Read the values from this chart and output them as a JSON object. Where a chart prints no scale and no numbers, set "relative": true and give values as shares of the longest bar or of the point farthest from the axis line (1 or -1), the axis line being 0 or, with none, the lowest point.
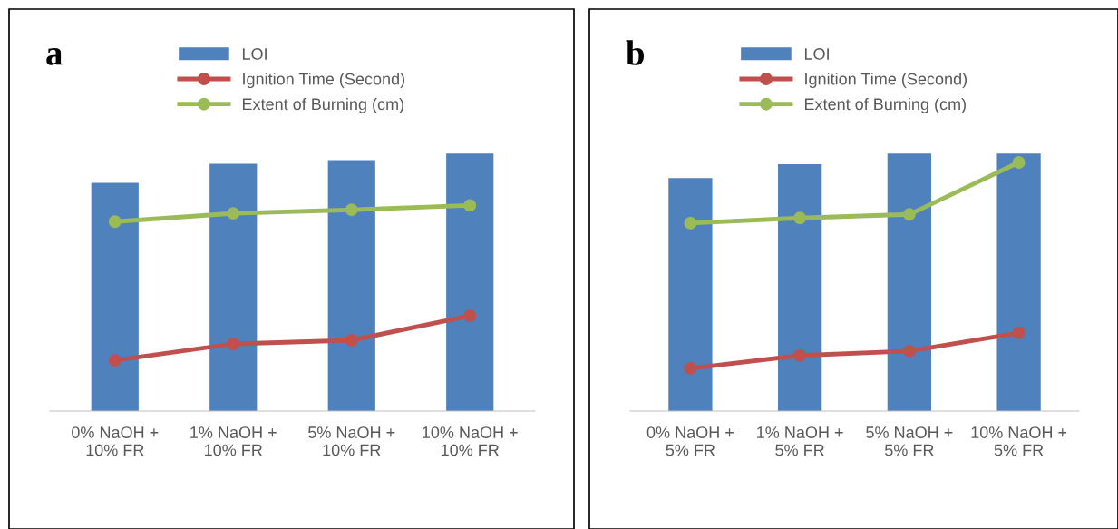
{
  "chart_data": [
    {
      "type": "bar",
      "relative": true,
      "annotations": [
        "a"
      ],
      "legend": "top",
      "marker": "circle",
      "grid": false,
      "categories": [
        "0% NaOH +\n10% FR",
        "1% NaOH +\n10% FR",
        "5% NaOH +\n10% FR",
        "10% NaOH +\n10% FR"
      ],
      "series": [
        {
          "name": "LOI",
          "color": "#4f81bd",
          "values": [
            0.887,
            0.961,
            0.975,
            1
          ]
        },
        {
          "name": "Ignition Time (Second)",
          "color": "#c0504d",
          "type": "line",
          "values": [
            0.197,
            0.261,
            0.275,
            0.37
          ]
        },
        {
          "name": "Extent of Burning (cm)",
          "color": "#9bbb59",
          "type": "line",
          "values": [
            0.736,
            0.768,
            0.782,
            0.799
          ]
        }
      ]
    },
    {
      "type": "bar",
      "relative": true,
      "annotations": [
        "b"
      ],
      "legend": "top",
      "marker": "circle",
      "grid": false,
      "categories": [
        "0% NaOH +\n5% FR",
        "1% NaOH +\n5% FR",
        "5% NaOH +\n5% FR",
        "10% NaOH +\n5% FR"
      ],
      "series": [
        {
          "name": "LOI",
          "color": "#4f81bd",
          "values": [
            0.905,
            0.959,
            1,
            1
          ]
        },
        {
          "name": "Ignition Time (Second)",
          "color": "#c0504d",
          "type": "line",
          "values": [
            0.166,
            0.216,
            0.233,
            0.304
          ]
        },
        {
          "name": "Extent of Burning (cm)",
          "color": "#9bbb59",
          "type": "line",
          "values": [
            0.73,
            0.75,
            0.764,
            0.966
          ]
        }
      ]
    }
  ]
}
